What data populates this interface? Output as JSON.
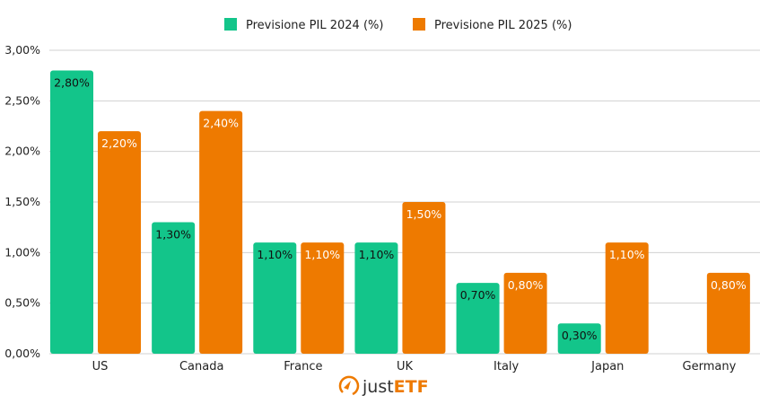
{
  "chart_data": {
    "type": "bar",
    "categories": [
      "US",
      "Canada",
      "France",
      "UK",
      "Italy",
      "Japan",
      "Germany"
    ],
    "series": [
      {
        "name": "Previsione PIL 2024 (%)",
        "color": "#13c58a",
        "label_color": "#111111",
        "values": [
          2.8,
          1.3,
          1.1,
          1.1,
          0.7,
          0.3,
          null
        ],
        "labels": [
          "2,80%",
          "1,30%",
          "1,10%",
          "1,10%",
          "0,70%",
          "0,30%",
          ""
        ]
      },
      {
        "name": "Previsione PIL 2025 (%)",
        "color": "#ee7a00",
        "label_color": "#ffffff",
        "values": [
          2.2,
          2.4,
          1.1,
          1.5,
          0.8,
          1.1,
          0.8
        ],
        "labels": [
          "2,20%",
          "2,40%",
          "1,10%",
          "1,50%",
          "0,80%",
          "1,10%",
          "0,80%"
        ]
      }
    ],
    "ylim": [
      0,
      3
    ],
    "yticks": [
      0,
      0.5,
      1,
      1.5,
      2,
      2.5,
      3
    ],
    "ytick_labels": [
      "0,00%",
      "0,50%",
      "1,00%",
      "1,50%",
      "2,00%",
      "2,50%",
      "3,00%"
    ],
    "grid": true,
    "legend_position": "top"
  },
  "logo": {
    "text": "justETF",
    "badge": "UK",
    "accent": "#ee7a00"
  }
}
